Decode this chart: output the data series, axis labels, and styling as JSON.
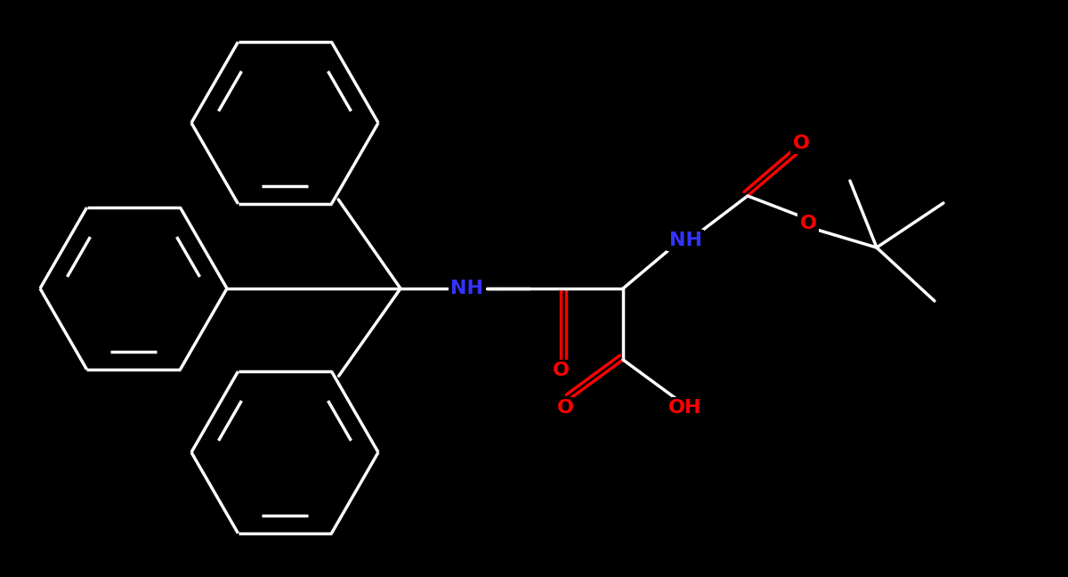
{
  "bg_color": "#000000",
  "bond_color": "#000000",
  "line_color": "#ffffff",
  "nitrogen_color": "#3333ff",
  "oxygen_color": "#ff0000",
  "bond_width": 2.5,
  "font_size_atom": 16,
  "fig_width": 12.0,
  "fig_height": 6.48,
  "xlim": [
    0,
    12
  ],
  "ylim": [
    0,
    6.48
  ]
}
